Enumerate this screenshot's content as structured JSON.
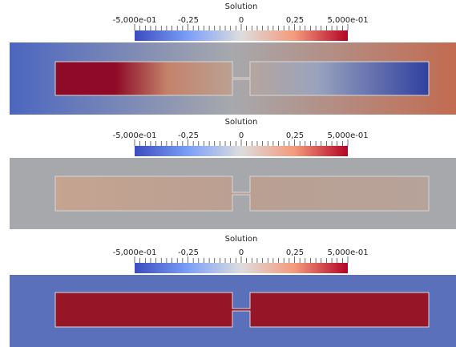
{
  "colorbar": {
    "title": "Solution",
    "min_label": "-5,000e-01",
    "q1_label": "-0,25",
    "mid_label": "0",
    "q3_label": "0,25",
    "max_label": "5,000e-01",
    "range": [
      -0.5,
      0.5
    ],
    "colormap": [
      "#3b4cc0",
      "#dddddd",
      "#b40426"
    ]
  },
  "panels": [
    {
      "background": {
        "type": "gradient",
        "stops": [
          "#4b66c0",
          "#a8a9ad",
          "#c26b50"
        ]
      },
      "regions": {
        "type": "gradient",
        "stops": [
          "#8e0a28",
          "#8e0a28",
          "#c4826a",
          "#b9a69a",
          "#9aa3bd",
          "#3040a0"
        ]
      },
      "region_outline": "#d7d7d7"
    },
    {
      "background": {
        "type": "solid",
        "color": "#a6a8ac"
      },
      "regions": {
        "type": "gradient",
        "stops": [
          "#c5a491",
          "#ba9f92",
          "#b7a39a"
        ]
      },
      "region_outline": "#d7d7d7"
    },
    {
      "background": {
        "type": "solid",
        "color": "#5b70bb"
      },
      "regions": {
        "type": "solid",
        "color": "#961628"
      },
      "region_outline": "#d7d7d7"
    }
  ]
}
